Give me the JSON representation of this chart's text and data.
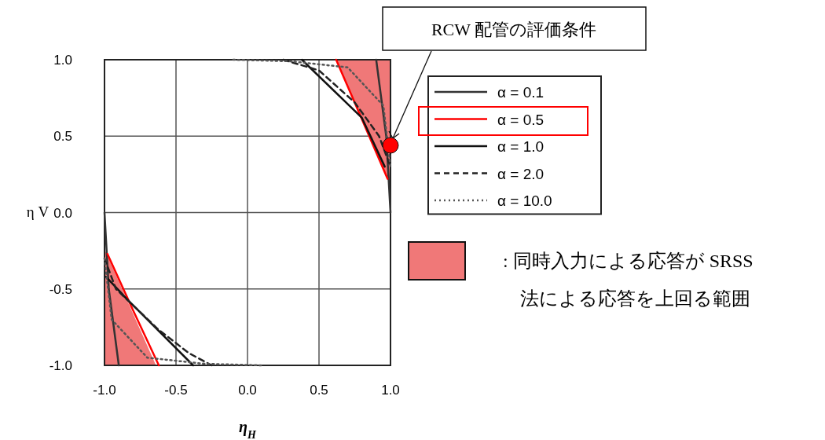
{
  "chart_data": {
    "type": "line",
    "xlabel": "η$_{H}$",
    "ylabel": "η V",
    "xlim": [
      -1.0,
      1.0
    ],
    "ylim": [
      -1.0,
      1.0
    ],
    "xticks": [
      {
        "value": -1.0,
        "label": "-1.0"
      },
      {
        "value": -0.5,
        "label": "-0.5"
      },
      {
        "value": 0,
        "label": "0.0"
      },
      {
        "value": 0.5,
        "label": "0.5"
      },
      {
        "value": 1.0,
        "label": "1.0"
      }
    ],
    "yticks": [
      {
        "value": -1.0,
        "label": "-1.0"
      },
      {
        "value": -0.5,
        "label": "-0.5"
      },
      {
        "value": 0,
        "label": "0.0"
      },
      {
        "value": 0.5,
        "label": "0.5"
      },
      {
        "value": 1.0,
        "label": "1.0"
      }
    ],
    "grid": true,
    "legend": "right",
    "marker": "none",
    "series": [
      {
        "name": ": 同時入力による応答が SRSS 法による応答を上回る範囲",
        "type": "area",
        "color": "#f07878",
        "x": [
          0.62,
          1.0,
          1.0,
          0.98
        ],
        "values": [
          1.0,
          1.0,
          0.2,
          0.22
        ]
      },
      {
        "type": "area",
        "color": "#f07878",
        "x": [
          -1.0,
          -0.64,
          -1.0
        ],
        "values": [
          -0.24,
          -1.0,
          -1.0
        ]
      },
      {
        "name": "α = 0.1",
        "color": "#333333",
        "line_style": "solid",
        "x": [
          0.9,
          0.97,
          1.0
        ],
        "values": [
          1.0,
          0.5,
          0.0
        ]
      },
      {
        "color": "#333333",
        "line_style": "solid",
        "x": [
          -1.0,
          -0.97,
          -0.9
        ],
        "values": [
          0.0,
          -0.5,
          -1.0
        ]
      },
      {
        "name": "α = 0.5",
        "color": "#ff0000",
        "line_style": "solid",
        "x": [
          0.62,
          0.8,
          0.98
        ],
        "values": [
          1.0,
          0.61,
          0.22
        ]
      },
      {
        "color": "#ff0000",
        "line_style": "solid",
        "x": [
          -0.98,
          -0.8,
          -0.62
        ],
        "values": [
          -0.27,
          -0.64,
          -1.0
        ]
      },
      {
        "name": "α = 1.0",
        "color": "#111111",
        "line_style": "solid",
        "x": [
          0.38,
          0.8,
          0.96
        ],
        "values": [
          1.0,
          0.62,
          0.3
        ]
      },
      {
        "color": "#111111",
        "line_style": "solid",
        "x": [
          -0.99,
          -0.85,
          -0.38
        ],
        "values": [
          -0.42,
          -0.56,
          -1.0
        ]
      },
      {
        "name": "α = 2.0",
        "color": "#222222",
        "line_style": "dashed",
        "x": [
          0.25,
          0.5,
          0.75,
          0.92,
          1.0
        ],
        "values": [
          1.0,
          0.93,
          0.72,
          0.5,
          0.3
        ]
      },
      {
        "color": "#222222",
        "line_style": "dashed",
        "x": [
          -1.0,
          -0.92,
          -0.63,
          -0.41,
          -0.25
        ],
        "values": [
          -0.3,
          -0.5,
          -0.76,
          -0.92,
          -1.0
        ]
      },
      {
        "name": "α = 10.0",
        "color": "#555555",
        "line_style": "dotted",
        "x": [
          -0.1,
          0.3,
          0.7,
          0.95,
          1.0
        ],
        "values": [
          1.0,
          0.99,
          0.95,
          0.7,
          0.3
        ]
      },
      {
        "color": "#555555",
        "line_style": "dotted",
        "x": [
          -1.0,
          -0.95,
          -0.7,
          -0.3,
          0.1
        ],
        "values": [
          -0.3,
          -0.7,
          -0.95,
          -0.99,
          -1.0
        ]
      }
    ],
    "annotations": [
      "RCW 配管の評価条件"
    ]
  }
}
